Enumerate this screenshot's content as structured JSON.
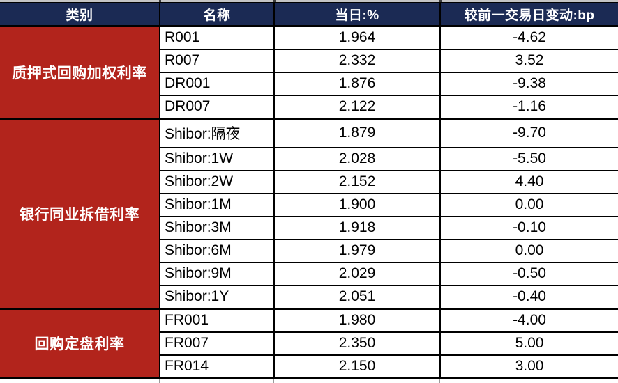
{
  "colors": {
    "header_bg": "#1b2a54",
    "category_bg": "#b2241c",
    "border": "#000000",
    "header_text": "#ffffff",
    "cell_text": "#000000"
  },
  "table": {
    "headers": [
      "类别",
      "名称",
      "当日:%",
      "较前一交易日变动:bp"
    ],
    "groups": [
      {
        "category": "质押式回购加权利率",
        "rows": [
          {
            "name": "R001",
            "value": "1.964",
            "change": "-4.62"
          },
          {
            "name": "R007",
            "value": "2.332",
            "change": "3.52"
          },
          {
            "name": "DR001",
            "value": "1.876",
            "change": "-9.38"
          },
          {
            "name": "DR007",
            "value": "2.122",
            "change": "-1.16"
          }
        ]
      },
      {
        "category": "银行同业拆借利率",
        "rows": [
          {
            "name": "Shibor:隔夜",
            "value": "1.879",
            "change": "-9.70"
          },
          {
            "name": "Shibor:1W",
            "value": "2.028",
            "change": "-5.50"
          },
          {
            "name": "Shibor:2W",
            "value": "2.152",
            "change": "4.40"
          },
          {
            "name": "Shibor:1M",
            "value": "1.900",
            "change": "0.00"
          },
          {
            "name": "Shibor:3M",
            "value": "1.918",
            "change": "-0.10"
          },
          {
            "name": "Shibor:6M",
            "value": "1.979",
            "change": "0.00"
          },
          {
            "name": "Shibor:9M",
            "value": "2.029",
            "change": "-0.50"
          },
          {
            "name": "Shibor:1Y",
            "value": "2.051",
            "change": "-0.40"
          }
        ]
      },
      {
        "category": "回购定盘利率",
        "rows": [
          {
            "name": "FR001",
            "value": "1.980",
            "change": "-4.00"
          },
          {
            "name": "FR007",
            "value": "2.350",
            "change": "5.00"
          },
          {
            "name": "FR014",
            "value": "2.150",
            "change": "3.00"
          }
        ]
      }
    ]
  }
}
